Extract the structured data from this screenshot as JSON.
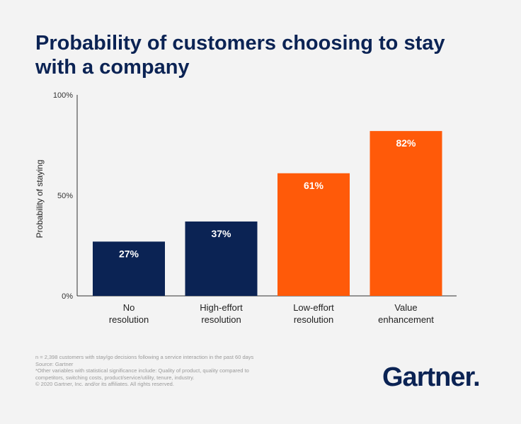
{
  "title": "Probability of customers choosing to stay with a company",
  "chart_data": {
    "type": "bar",
    "title": "Probability of customers choosing to stay with a company",
    "ylabel": "Probability of staying",
    "xlabel": "",
    "ylim": [
      0,
      100
    ],
    "yticks": [
      0,
      50,
      100
    ],
    "ytick_labels": [
      "0%",
      "50%",
      "100%"
    ],
    "categories": [
      [
        "No",
        "resolution"
      ],
      [
        "High-effort",
        "resolution"
      ],
      [
        "Low-effort",
        "resolution"
      ],
      [
        "Value",
        "enhancement"
      ]
    ],
    "values": [
      27,
      37,
      61,
      82
    ],
    "value_labels": [
      "27%",
      "37%",
      "61%",
      "82%"
    ],
    "bar_colors": [
      "#0b2354",
      "#0b2354",
      "#ff5a09",
      "#ff5a09"
    ],
    "grid": false
  },
  "footnotes": [
    "n = 2,398 customers with stay/go decisions following a service interaction in the past 60 days",
    "Source: Gartner",
    "*Other variables with statistical significance include: Quality of product, quality compared to",
    "competitors, switching costs, product/service/utility, tenure, industry.",
    "© 2020 Gartner, Inc. and/or its affiliates. All rights reserved."
  ],
  "logo": "Gartner."
}
